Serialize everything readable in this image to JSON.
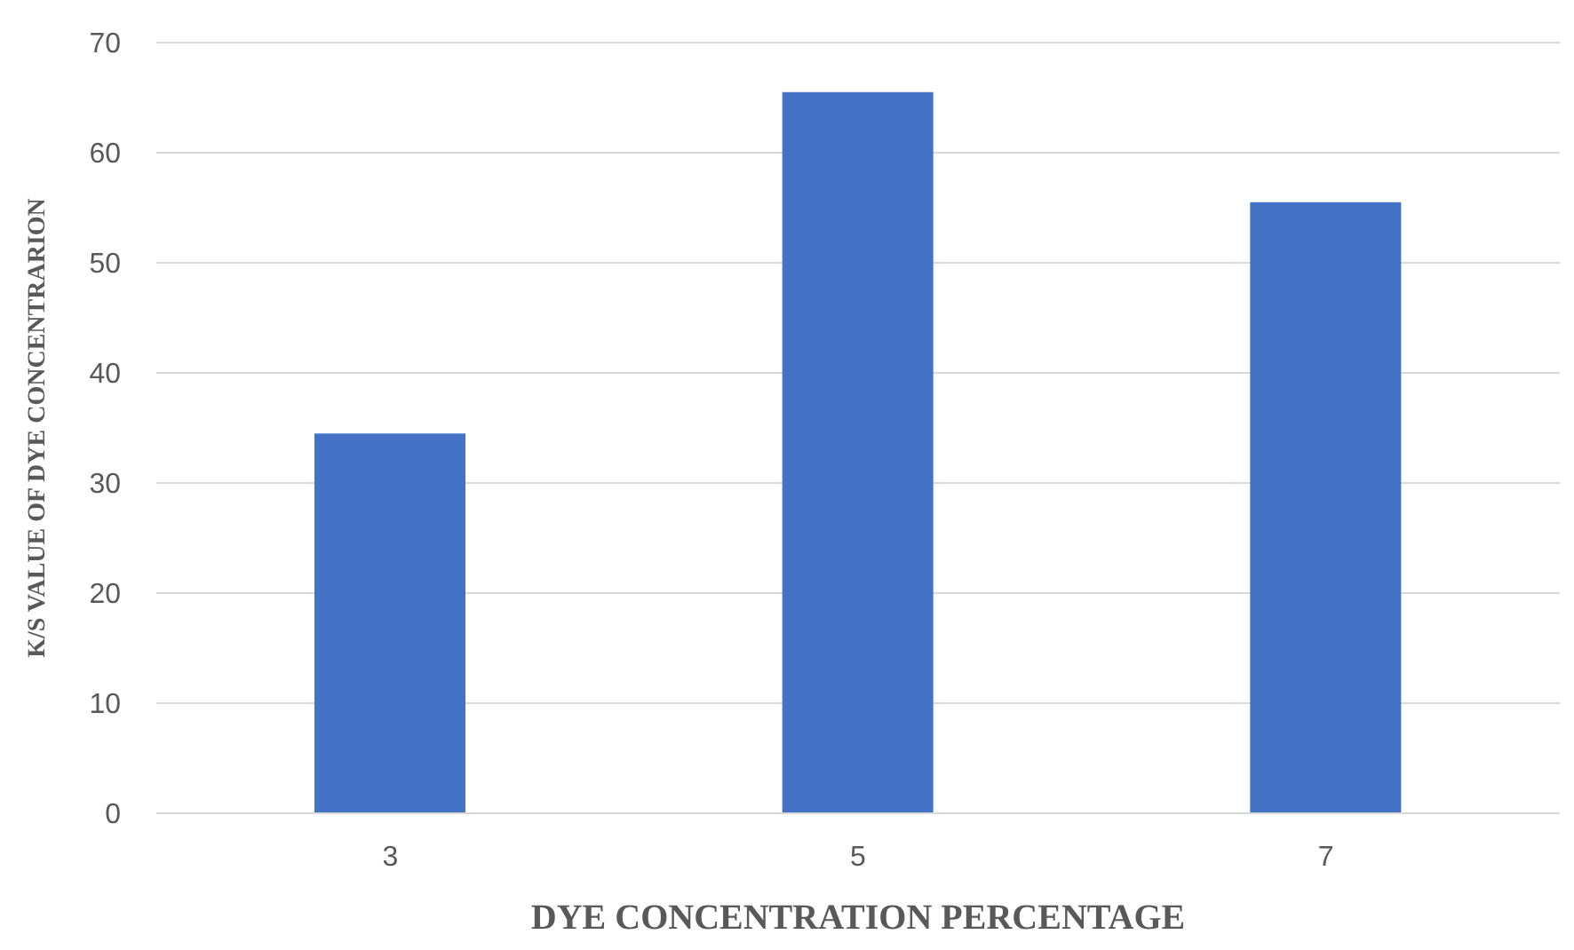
{
  "chart_data": {
    "type": "bar",
    "xlabel": "DYE CONCENTRATION PERCENTAGE",
    "ylabel": "K/S VALUE OF DYE CONCENTRARION",
    "categories": [
      "3",
      "5",
      "7"
    ],
    "values": [
      34.5,
      65.5,
      55.5
    ],
    "color": "#4472c4",
    "ylim": [
      0,
      70
    ],
    "yticks": [
      0,
      10,
      20,
      30,
      40,
      50,
      60,
      70
    ],
    "grid": "y"
  }
}
